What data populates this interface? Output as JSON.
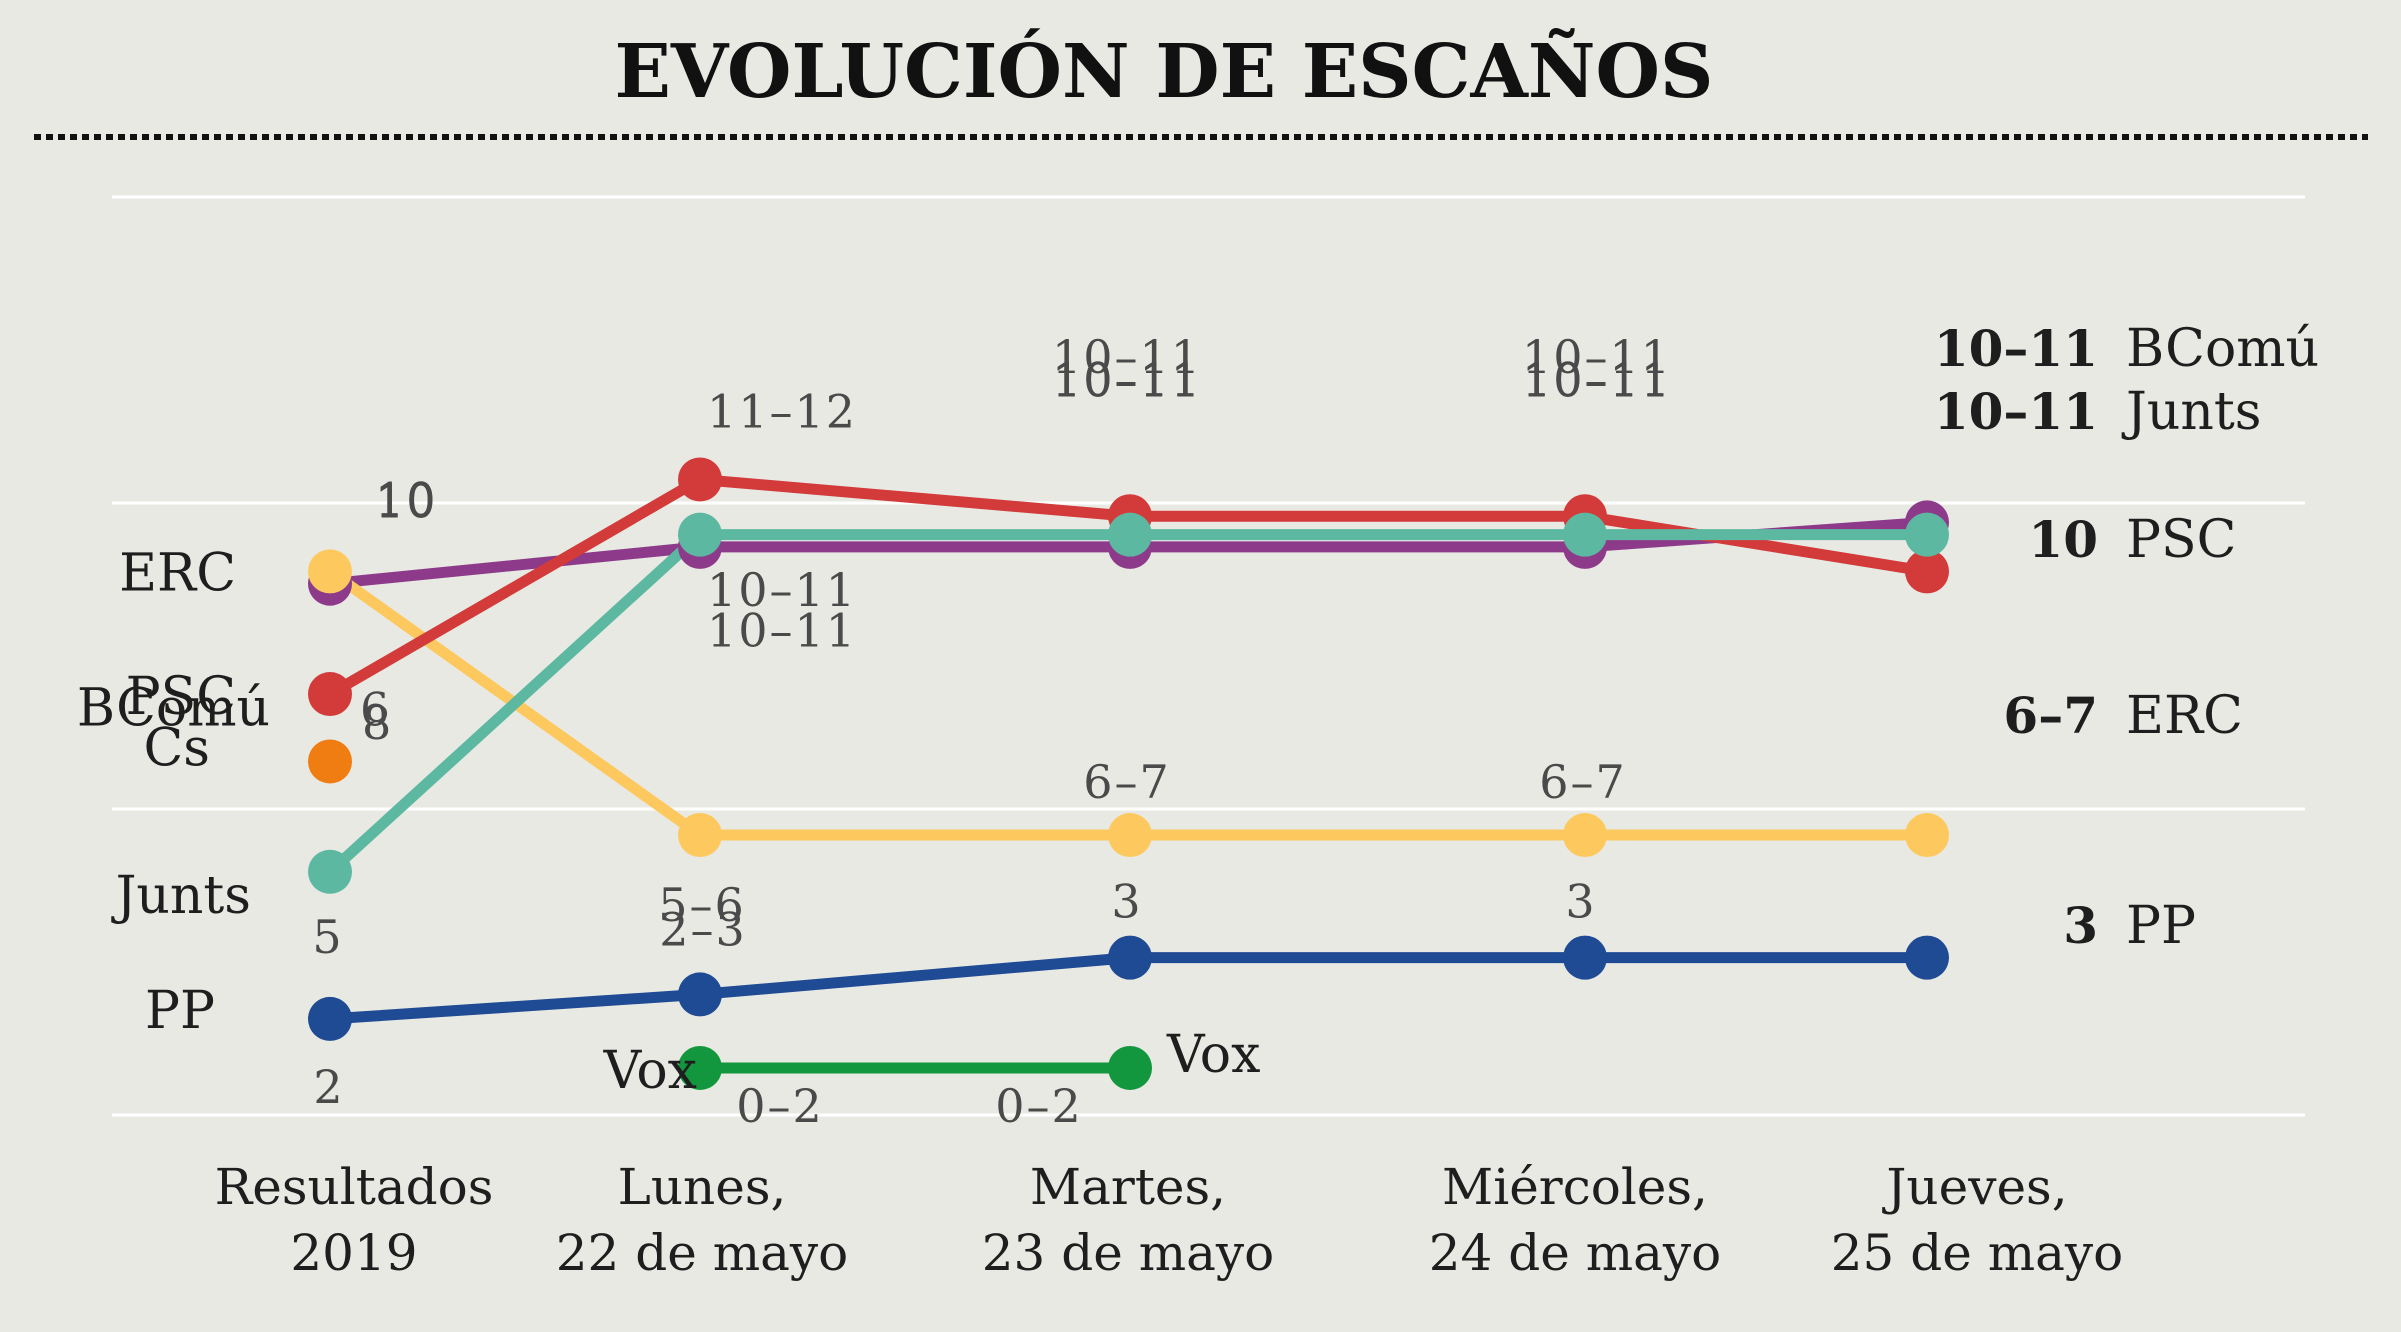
{
  "chart_data": {
    "type": "line",
    "title": "EVOLUCIÓN DE ESCAÑOS",
    "categories": [
      [
        "Resultados",
        "2019"
      ],
      [
        "Lunes,",
        "22 de mayo"
      ],
      [
        "Martes,",
        "23 de mayo"
      ],
      [
        "Miércoles,",
        "24 de mayo"
      ],
      [
        "Jueves,",
        "25 de mayo"
      ]
    ],
    "xlabel": "",
    "ylabel": "",
    "ylim": [
      1,
      13
    ],
    "grid": true,
    "legend": "direct-labels",
    "series": [
      {
        "name": "BComú",
        "color": "#8e3a8a",
        "start_label": "BComú",
        "end_label": "BComú",
        "end_value_label": "10–11",
        "values": [
          9.7,
          10.3,
          10.3,
          10.3,
          10.7
        ],
        "labels": [
          "10",
          "10–11",
          "10–11",
          "10–11",
          ""
        ]
      },
      {
        "name": "ERC",
        "color": "#fdc95f",
        "start_label": "ERC",
        "end_label": "ERC",
        "end_value_label": "6–7",
        "values": [
          9.9,
          5.6,
          5.6,
          5.6,
          5.6
        ],
        "labels": [
          "10",
          "5–6",
          "6–7",
          "6–7",
          ""
        ]
      },
      {
        "name": "PSC",
        "color": "#d33b3b",
        "start_label": "PSC",
        "end_label": "PSC",
        "end_value_label": "10",
        "values": [
          7.9,
          11.4,
          10.8,
          10.8,
          9.9
        ],
        "labels": [
          "8",
          "11–12",
          "10–11",
          "10–11",
          ""
        ]
      },
      {
        "name": "Cs",
        "color": "#f07d12",
        "start_label": "Cs",
        "end_label": "",
        "end_value_label": "",
        "values": [
          6.8,
          null,
          null,
          null,
          null
        ],
        "labels": [
          "6",
          "",
          "",
          "",
          ""
        ]
      },
      {
        "name": "Junts",
        "color": "#5cb8a0",
        "start_label": "Junts",
        "end_label": "Junts",
        "end_value_label": "10–11",
        "values": [
          5.0,
          10.5,
          10.5,
          10.5,
          10.5
        ],
        "labels": [
          "5",
          "10–11",
          "10–11",
          "10–11",
          ""
        ]
      },
      {
        "name": "PP",
        "color": "#1f4a94",
        "start_label": "PP",
        "end_label": "PP",
        "end_value_label": "3",
        "values": [
          2.6,
          3.0,
          3.6,
          3.6,
          3.6
        ],
        "labels": [
          "2",
          "2–3",
          "3",
          "3",
          ""
        ]
      },
      {
        "name": "Vox",
        "color": "#12963e",
        "start_label": "Vox",
        "end_label": "Vox",
        "end_value_label": "",
        "values": [
          null,
          1.8,
          1.8,
          null,
          null
        ],
        "labels": [
          "",
          "0–2",
          "0–2",
          "",
          ""
        ]
      }
    ]
  }
}
